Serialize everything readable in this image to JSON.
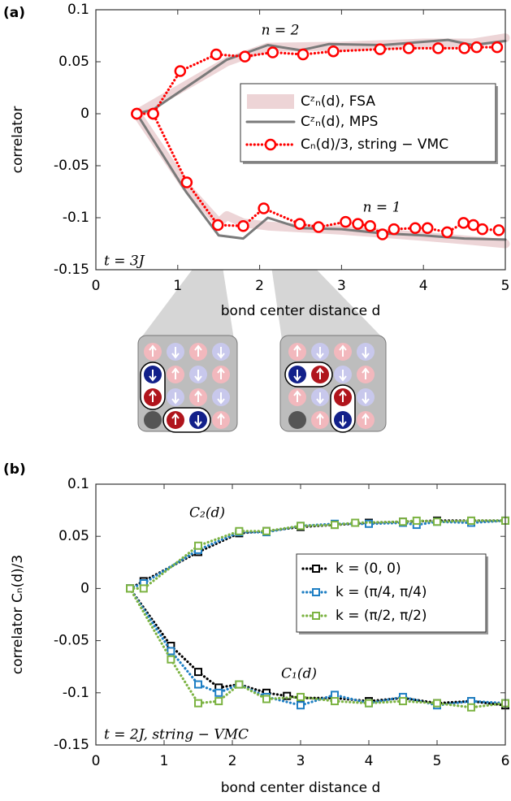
{
  "chart_data": [
    {
      "type": "line",
      "panel_label": "(a)",
      "ylabel": "correlator",
      "xlabel": "bond center distance d",
      "xlim": [
        0,
        5
      ],
      "xticks": [
        0,
        1,
        2,
        3,
        4,
        5
      ],
      "ylim": [
        -0.15,
        0.1
      ],
      "yticks": [
        -0.15,
        -0.1,
        -0.05,
        0,
        0.05,
        0.1
      ],
      "annotations": [
        "n = 2",
        "n = 1",
        "t = 3J"
      ],
      "series": [
        {
          "name": "Cᶻₙ(d),  FSA",
          "color": "#e6c3c6",
          "line": "band",
          "marker": null,
          "x": [
            0.5,
            1.6,
            2.1,
            3,
            4,
            4.6,
            5,
            null,
            0.5,
            1.1,
            1.5,
            1.6,
            1.8,
            2.1,
            3,
            4,
            4.6,
            5
          ],
          "values": [
            0,
            0.05,
            0.064,
            0.065,
            0.068,
            0.068,
            0.073,
            null,
            0,
            -0.07,
            -0.105,
            -0.098,
            -0.105,
            -0.108,
            -0.112,
            -0.118,
            -0.122,
            -0.125
          ]
        },
        {
          "name": "Cᶻₙ(d),  MPS",
          "color": "#7a7a7a",
          "line": "solid",
          "marker": null,
          "x": [
            0.5,
            0.7,
            1.6,
            2.1,
            2.5,
            2.85,
            3.5,
            4.3,
            4.6,
            5,
            null,
            0.5,
            1.1,
            1.5,
            1.8,
            2.1,
            2.5,
            3,
            3.5,
            4,
            4.5,
            5
          ],
          "values": [
            0,
            0.004,
            0.052,
            0.066,
            0.061,
            0.067,
            0.066,
            0.071,
            0.066,
            0.07,
            null,
            0,
            -0.075,
            -0.117,
            -0.12,
            -0.1,
            -0.11,
            -0.111,
            -0.115,
            -0.117,
            -0.12,
            -0.121
          ]
        },
        {
          "name": "Cₙ(d)/3, string − VMC",
          "color": "#ff0000",
          "line": "dotted",
          "marker": "circle",
          "x": [
            0.5,
            0.7,
            1.03,
            1.47,
            1.82,
            2.16,
            2.53,
            2.9,
            3.47,
            3.82,
            4.18,
            4.5,
            4.65,
            4.9,
            null,
            0.5,
            0.7,
            1.11,
            1.49,
            1.8,
            2.05,
            2.49,
            2.72,
            3.05,
            3.2,
            3.35,
            3.5,
            3.64,
            3.9,
            4.05,
            4.29,
            4.49,
            4.61,
            4.72,
            4.92
          ],
          "values": [
            0,
            0,
            0.041,
            0.057,
            0.055,
            0.059,
            0.057,
            0.06,
            0.062,
            0.063,
            0.063,
            0.063,
            0.064,
            0.064,
            null,
            0,
            0,
            -0.066,
            -0.107,
            -0.108,
            -0.091,
            -0.106,
            -0.109,
            -0.104,
            -0.106,
            -0.108,
            -0.116,
            -0.111,
            -0.11,
            -0.11,
            -0.114,
            -0.105,
            -0.107,
            -0.111,
            -0.112
          ]
        }
      ]
    },
    {
      "type": "line",
      "panel_label": "(b)",
      "ylabel": "correlator Cₙ(d)/3",
      "xlabel": "bond center distance d",
      "xlim": [
        0,
        6
      ],
      "xticks": [
        0,
        1,
        2,
        3,
        4,
        5,
        6
      ],
      "ylim": [
        -0.15,
        0.1
      ],
      "yticks": [
        -0.15,
        -0.1,
        -0.05,
        0,
        0.05,
        0.1
      ],
      "annotations": [
        "C₂(d)",
        "C₁(d)",
        "t = 2J, string − VMC"
      ],
      "series": [
        {
          "name": "k = (0, 0)",
          "color": "#000000",
          "line": "dotted",
          "marker": "square",
          "x": [
            0.5,
            0.7,
            1.5,
            2.1,
            2.5,
            3,
            3.5,
            4,
            4.5,
            5,
            5.5,
            6,
            null,
            0.5,
            1.1,
            1.5,
            1.8,
            2.1,
            2.5,
            2.8,
            3,
            3.5,
            4,
            4.5,
            5,
            5.5,
            6
          ],
          "values": [
            0,
            0.007,
            0.035,
            0.053,
            0.055,
            0.059,
            0.061,
            0.063,
            0.064,
            0.065,
            0.065,
            0.065,
            null,
            0,
            -0.055,
            -0.08,
            -0.095,
            -0.092,
            -0.1,
            -0.103,
            -0.105,
            -0.105,
            -0.108,
            -0.105,
            -0.11,
            -0.108,
            -0.112
          ]
        },
        {
          "name": "k = (π/4, π/4)",
          "color": "#1f7fc4",
          "line": "dotted",
          "marker": "square",
          "x": [
            0.5,
            0.7,
            1.5,
            2.1,
            2.5,
            3,
            3.5,
            4,
            4.5,
            4.7,
            5,
            5.5,
            6,
            null,
            0.5,
            1.1,
            1.5,
            1.8,
            2.1,
            2.5,
            3,
            3.5,
            4,
            4.5,
            5,
            5.5,
            6
          ],
          "values": [
            0,
            0.005,
            0.037,
            0.054,
            0.054,
            0.06,
            0.062,
            0.062,
            0.063,
            0.061,
            0.064,
            0.063,
            0.065,
            null,
            0,
            -0.06,
            -0.092,
            -0.1,
            -0.092,
            -0.104,
            -0.112,
            -0.102,
            -0.11,
            -0.104,
            -0.112,
            -0.108,
            -0.11
          ]
        },
        {
          "name": "k = (π/2, π/2)",
          "color": "#7cb342",
          "line": "dotted",
          "marker": "square",
          "x": [
            0.5,
            0.7,
            1.5,
            2.1,
            2.5,
            3,
            3.5,
            3.8,
            4.5,
            4.7,
            5,
            5.5,
            6,
            null,
            0.5,
            1.1,
            1.5,
            1.8,
            2.1,
            2.5,
            3,
            3.5,
            4,
            4.5,
            5,
            5.5,
            6
          ],
          "values": [
            0,
            0,
            0.041,
            0.055,
            0.055,
            0.06,
            0.061,
            0.063,
            0.064,
            0.065,
            0.064,
            0.065,
            0.065,
            null,
            0,
            -0.068,
            -0.11,
            -0.108,
            -0.092,
            -0.106,
            -0.104,
            -0.108,
            -0.11,
            -0.108,
            -0.11,
            -0.114,
            -0.11
          ]
        }
      ]
    }
  ]
}
